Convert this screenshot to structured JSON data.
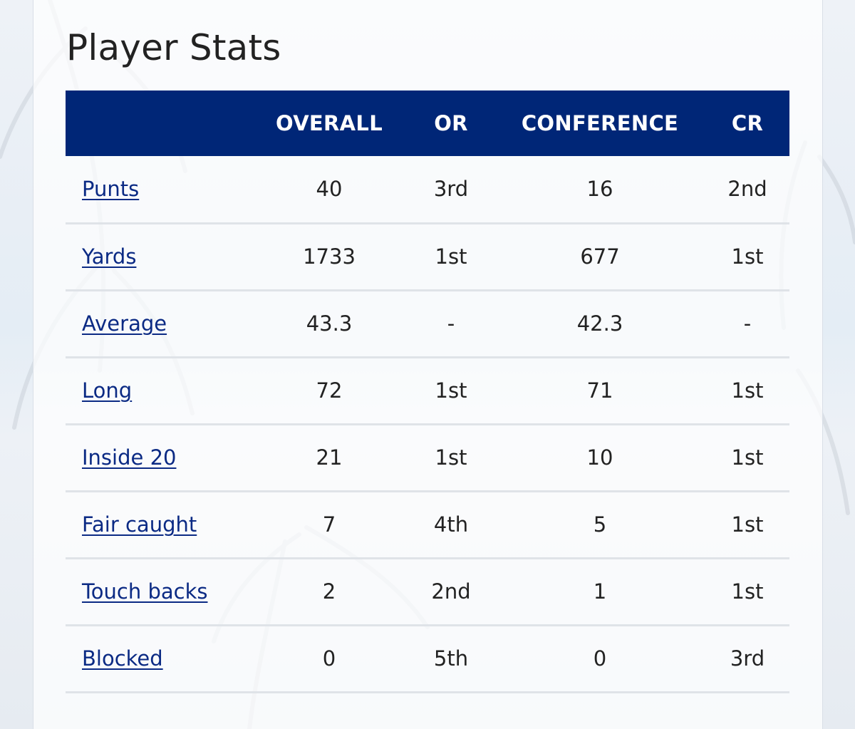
{
  "page": {
    "title": "Player Stats"
  },
  "table": {
    "headers": [
      "",
      "OVERALL",
      "OR",
      "CONFERENCE",
      "CR"
    ],
    "rows": [
      {
        "label": "Punts",
        "overall": "40",
        "or": "3rd",
        "conference": "16",
        "cr": "2nd"
      },
      {
        "label": "Yards",
        "overall": "1733",
        "or": "1st",
        "conference": "677",
        "cr": "1st"
      },
      {
        "label": "Average",
        "overall": "43.3",
        "or": "-",
        "conference": "42.3",
        "cr": "-"
      },
      {
        "label": "Long",
        "overall": "72",
        "or": "1st",
        "conference": "71",
        "cr": "1st"
      },
      {
        "label": "Inside 20",
        "overall": "21",
        "or": "1st",
        "conference": "10",
        "cr": "1st"
      },
      {
        "label": "Fair caught",
        "overall": "7",
        "or": "4th",
        "conference": "5",
        "cr": "1st"
      },
      {
        "label": "Touch backs",
        "overall": "2",
        "or": "2nd",
        "conference": "1",
        "cr": "1st"
      },
      {
        "label": "Blocked",
        "overall": "0",
        "or": "5th",
        "conference": "0",
        "cr": "3rd"
      }
    ]
  },
  "colors": {
    "header_bg": "#002677",
    "link": "#0b2a84",
    "row_divider": "#dfe3e8"
  }
}
